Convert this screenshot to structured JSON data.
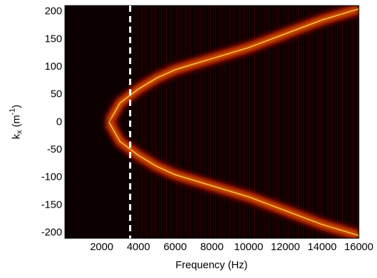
{
  "chart_data": {
    "type": "heatmap",
    "xlabel": "Frequency (Hz)",
    "ylabel": [
      "k",
      "x",
      " (m",
      "-1",
      ")"
    ],
    "xlim": [
      0,
      16000
    ],
    "xticks": [
      2000,
      4000,
      6000,
      8000,
      10000,
      12000,
      14000,
      16000
    ],
    "ylim": [
      -210,
      211
    ],
    "yticks": [
      -200,
      -150,
      -100,
      -50,
      0,
      50,
      100,
      150,
      200
    ],
    "vline": 3550,
    "series": [
      {
        "color": "#ffb400",
        "x": [
          2400,
          3000,
          4000,
          5000,
          6000,
          8000,
          10000,
          12000,
          14000,
          16000
        ],
        "values": [
          0,
          35,
          60,
          80,
          95,
          115,
          135,
          160,
          185,
          205
        ]
      },
      {
        "color": "#ffb400",
        "x": [
          2400,
          3000,
          4000,
          5000,
          6000,
          8000,
          10000,
          12000,
          14000,
          16000
        ],
        "values": [
          0,
          -35,
          -60,
          -80,
          -95,
          -115,
          -135,
          -160,
          -185,
          -205
        ]
      }
    ]
  }
}
